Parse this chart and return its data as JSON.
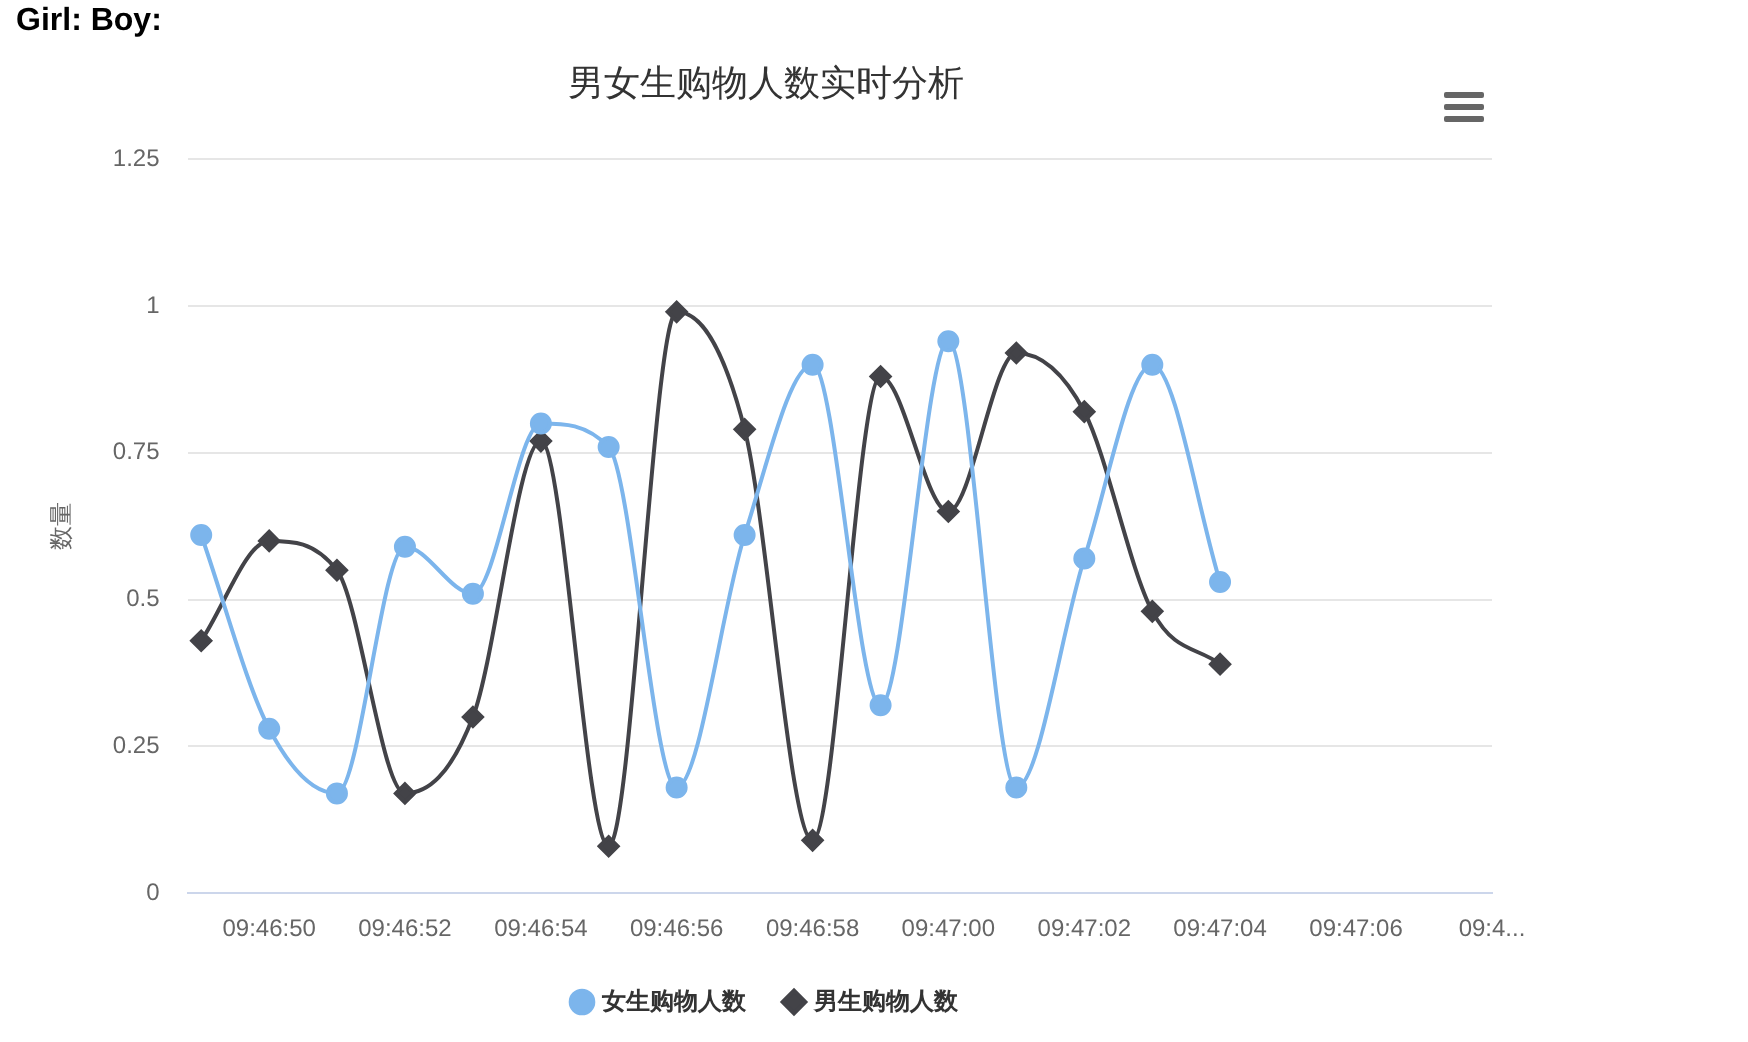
{
  "chart_data": {
    "type": "line",
    "title": "男女生购物人数实时分析",
    "ylabel": "数量",
    "annotations": [
      "Girl: Boy:"
    ],
    "xlim": [
      9.780222,
      9.785556
    ],
    "xticks": [
      {
        "value": 9.780556,
        "label": "09:46:50"
      },
      {
        "value": 9.781111,
        "label": "09:46:52"
      },
      {
        "value": 9.781667,
        "label": "09:46:54"
      },
      {
        "value": 9.782222,
        "label": "09:46:56"
      },
      {
        "value": 9.782778,
        "label": "09:46:58"
      },
      {
        "value": 9.783333,
        "label": "09:47:00"
      },
      {
        "value": 9.783889,
        "label": "09:47:02"
      },
      {
        "value": 9.784444,
        "label": "09:47:04"
      },
      {
        "value": 9.785,
        "label": "09:47:06"
      },
      {
        "value": 9.785556,
        "label": "09:4..."
      }
    ],
    "x": [
      9.780278,
      9.780556,
      9.780833,
      9.781111,
      9.781389,
      9.781667,
      9.781944,
      9.782222,
      9.7825,
      9.782778,
      9.783056,
      9.783333,
      9.783611,
      9.783889,
      9.784167,
      9.784444
    ],
    "ylim": [
      0,
      1.25
    ],
    "yticks": [
      0,
      0.25,
      0.5,
      0.75,
      1,
      1.25
    ],
    "grid": "y",
    "legend": "bottom",
    "series": [
      {
        "name": "女生购物人数",
        "color": "#7cb5ec",
        "marker": "circle",
        "values": [
          0.61,
          0.28,
          0.17,
          0.59,
          0.51,
          0.8,
          0.76,
          0.18,
          0.61,
          0.9,
          0.32,
          0.94,
          0.18,
          0.57,
          0.9,
          0.53
        ]
      },
      {
        "name": "男生购物人数",
        "color": "#434348",
        "marker": "diamond",
        "values": [
          0.43,
          0.6,
          0.55,
          0.17,
          0.3,
          0.77,
          0.08,
          0.99,
          0.79,
          0.09,
          0.88,
          0.65,
          0.92,
          0.82,
          0.48,
          0.39
        ]
      }
    ]
  }
}
